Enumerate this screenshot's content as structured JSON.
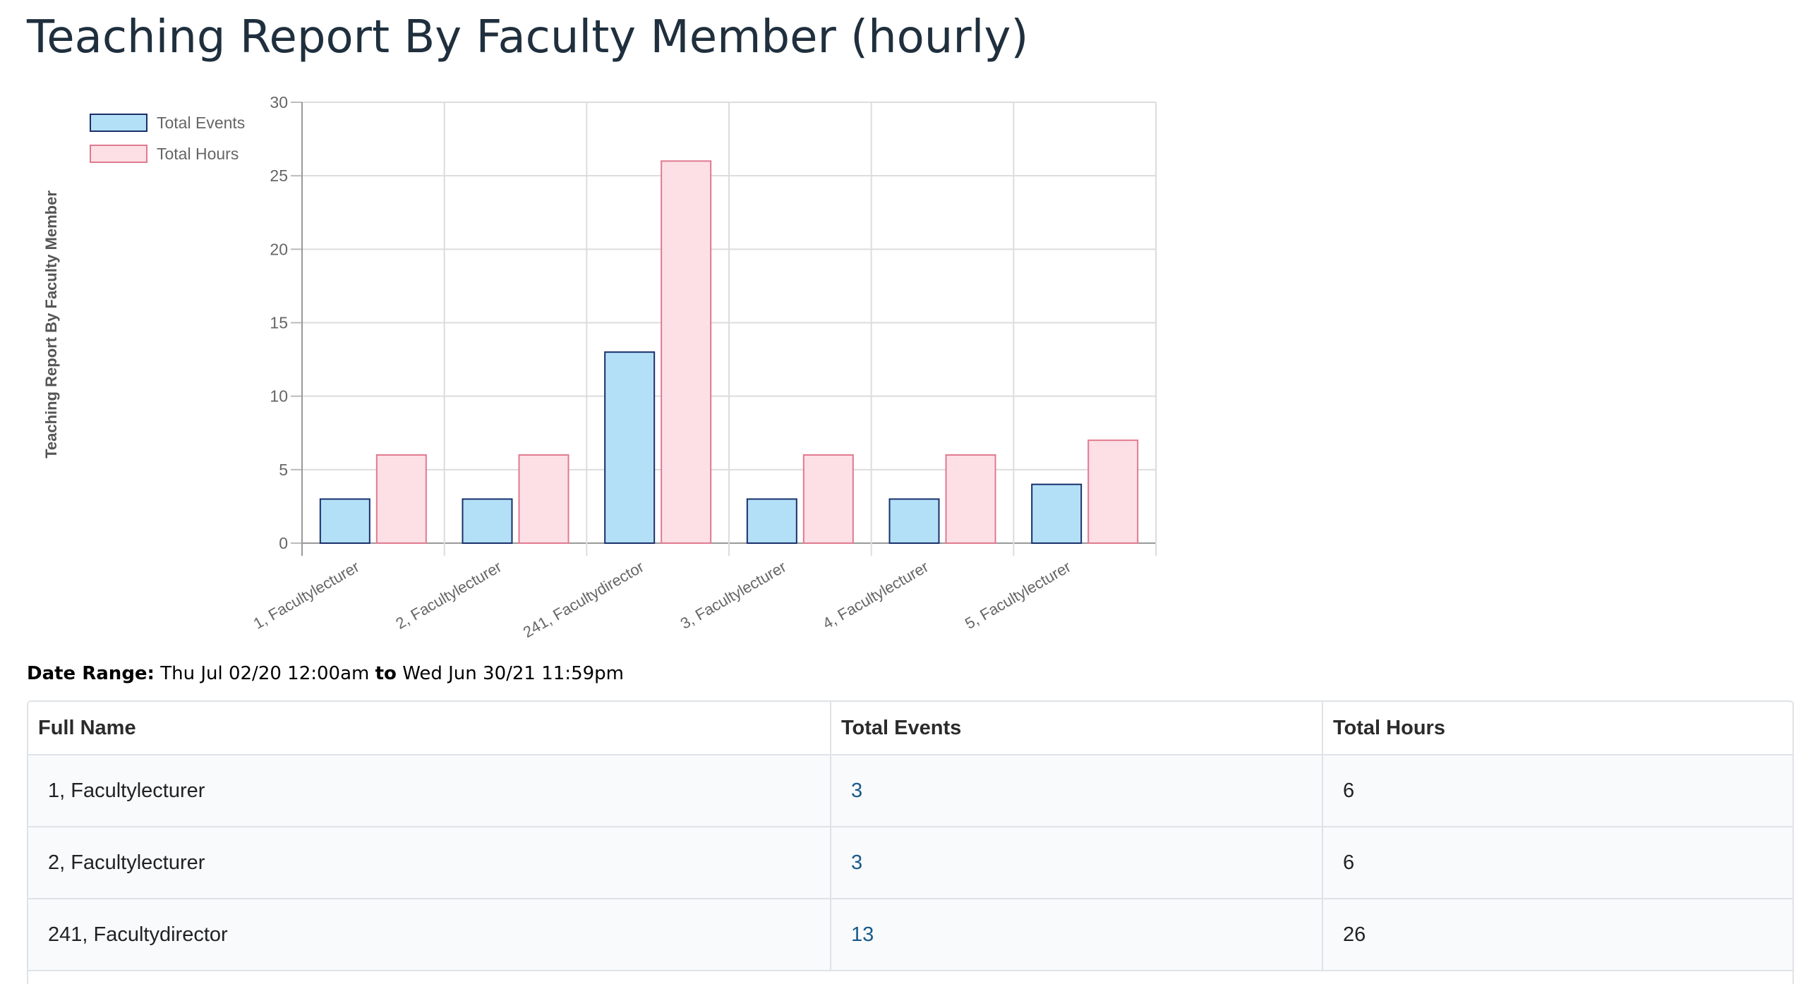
{
  "page": {
    "title": "Teaching Report By Faculty Member (hourly)"
  },
  "chart_data": {
    "type": "bar",
    "ylabel": "Teaching Report By Faculty Member",
    "xlabel": "",
    "ylim": [
      0,
      30
    ],
    "yticks": [
      0,
      5,
      10,
      15,
      20,
      25,
      30
    ],
    "grid": true,
    "legend_position": "top-left",
    "categories": [
      "1, Facultylecturer",
      "2, Facultylecturer",
      "241, Facultydirector",
      "3, Facultylecturer",
      "4, Facultylecturer",
      "5, Facultylecturer"
    ],
    "series": [
      {
        "name": "Total Events",
        "values": [
          3,
          3,
          13,
          3,
          3,
          4
        ],
        "fill": "#b3e0f7",
        "stroke": "#1a2f6b"
      },
      {
        "name": "Total Hours",
        "values": [
          6,
          6,
          26,
          6,
          6,
          7
        ],
        "fill": "#fde0e6",
        "stroke": "#e07a90"
      }
    ]
  },
  "date_range": {
    "label": "Date Range:",
    "start": "Thu Jul 02/20 12:00am",
    "separator": "to",
    "end": "Wed Jun 30/21 11:59pm"
  },
  "table": {
    "columns": [
      "Full Name",
      "Total Events",
      "Total Hours"
    ],
    "rows": [
      {
        "name": "1, Facultylecturer",
        "events": "3",
        "hours": "6"
      },
      {
        "name": "2, Facultylecturer",
        "events": "3",
        "hours": "6"
      },
      {
        "name": "241, Facultydirector",
        "events": "13",
        "hours": "26"
      }
    ]
  }
}
